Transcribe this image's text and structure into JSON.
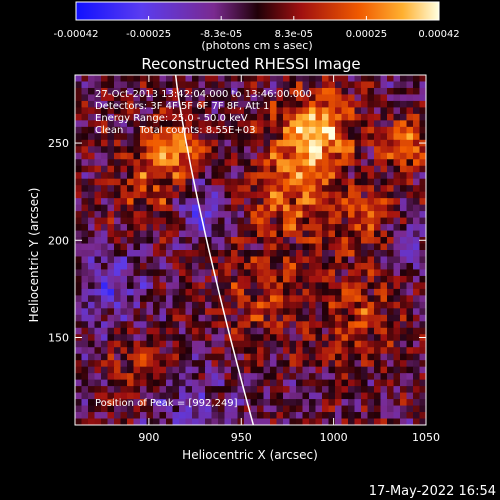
{
  "chart_data": {
    "type": "heatmap",
    "title": "Reconstructed RHESSI Image",
    "xlabel": "Heliocentric X (arcsec)",
    "ylabel": "Heliocentric Y (arcsec)",
    "xlim": [
      860,
      1050
    ],
    "ylim": [
      105,
      285
    ],
    "x_ticks": [
      900,
      950,
      1000,
      1050
    ],
    "y_ticks": [
      150,
      200,
      250
    ],
    "colorbar": {
      "label_html": "(photons cm<sup>-2</sup> s<sup>-1</sup> asec<sup>-2</sup>)",
      "range": [
        -0.00042,
        0.00042
      ],
      "tick_labels": [
        "-0.00042",
        "-0.00025",
        "-8.3e-05",
        "8.3e-05",
        "0.00025",
        "0.00042"
      ]
    },
    "annotations": [
      "27-Oct-2013 13:42:04.000 to 13:46:00.000",
      "Detectors: 3F 4F 5F 6F 7F 8F, Att 1",
      "Energy Range: 25.0 - 50.0 keV",
      "Clean     Total counts: 8.55E+03"
    ],
    "peak_label": "Position of Peak = [992,249]",
    "grid": false
  },
  "footer": {
    "date": "17-May-2022 16:54"
  }
}
